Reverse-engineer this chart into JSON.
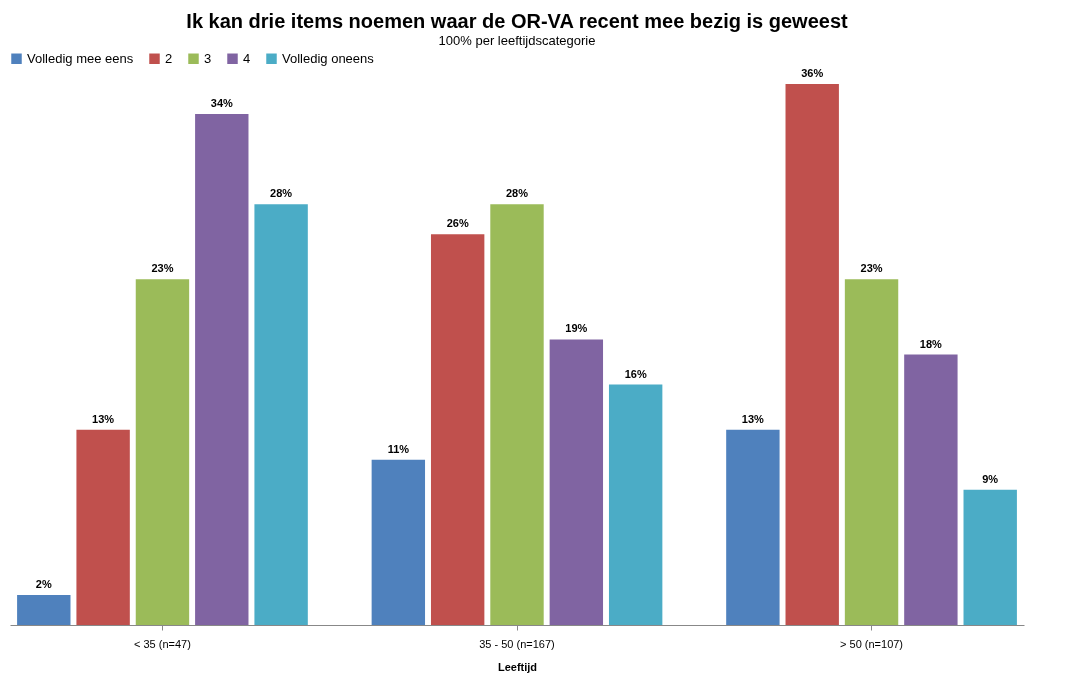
{
  "chart_data": {
    "type": "bar",
    "title": "Ik kan drie items noemen waar de OR-VA recent mee bezig is geweest",
    "subtitle": "100% per leeftijdscategorie",
    "xlabel": "Leeftijd",
    "legend": "top",
    "grid": false,
    "categories": [
      "< 35 (n=47)",
      "35 - 50 (n=167)",
      "> 50 (n=107)"
    ],
    "series": [
      {
        "name": "Volledig mee eens",
        "color": "#4f81bd",
        "values": [
          2,
          11,
          13
        ],
        "value_labels": [
          "2%",
          "11%",
          "13%"
        ]
      },
      {
        "name": "2",
        "color": "#c0504d",
        "values": [
          13,
          26,
          36
        ],
        "value_labels": [
          "13%",
          "26%",
          "36%"
        ]
      },
      {
        "name": "3",
        "color": "#9bbb59",
        "values": [
          23,
          28,
          23
        ],
        "value_labels": [
          "23%",
          "28%",
          "23%"
        ]
      },
      {
        "name": "4",
        "color": "#8064a2",
        "values": [
          34,
          19,
          18
        ],
        "value_labels": [
          "34%",
          "19%",
          "18%"
        ]
      },
      {
        "name": "Volledig oneens",
        "color": "#4bacc6",
        "values": [
          28,
          16,
          9
        ],
        "value_labels": [
          "28%",
          "16%",
          "9%"
        ]
      }
    ]
  }
}
